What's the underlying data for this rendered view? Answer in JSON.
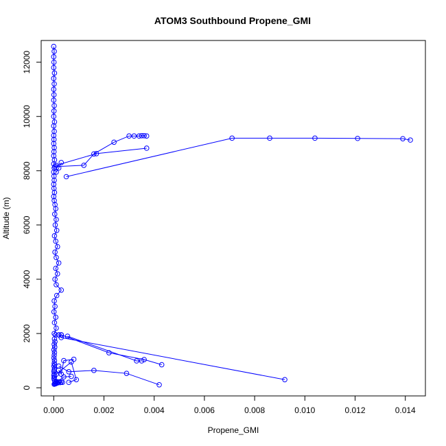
{
  "chart_data": {
    "type": "line",
    "title": "ATOM3 Southbound Propene_GMI",
    "xlabel": "Propene_GMI",
    "ylabel": "Altitude (m)",
    "xlim": [
      -0.0005,
      0.0148
    ],
    "ylim": [
      -300,
      12800
    ],
    "xticks": [
      0,
      0.002,
      0.004,
      0.006,
      0.008,
      0.01,
      0.012,
      0.014
    ],
    "xtick_labels": [
      "0.000",
      "0.002",
      "0.004",
      "0.006",
      "0.008",
      "0.010",
      "0.012",
      "0.014"
    ],
    "yticks": [
      0,
      2000,
      4000,
      6000,
      8000,
      10000,
      12000
    ],
    "ytick_labels": [
      "0",
      "2000",
      "4000",
      "6000",
      "8000",
      "10000",
      "12000"
    ],
    "grid": false,
    "legend": "none",
    "series": [
      {
        "color": "#0000ff",
        "marker": "open-circle",
        "x": [
          0,
          2e-05,
          0,
          1e-05,
          0,
          3e-05,
          0,
          2e-05,
          0,
          1e-05,
          0,
          2e-05,
          1e-05,
          0,
          3e-05,
          0,
          2e-05,
          0,
          1e-05,
          0,
          2e-05,
          1e-05,
          0,
          3e-05,
          0,
          2e-05,
          0,
          1e-05,
          2e-05,
          0,
          1e-05,
          3e-05,
          0,
          2e-05,
          5e-05,
          8e-05,
          4e-05,
          0.0001,
          6e-05,
          0.00012,
          3e-05,
          8e-05,
          0.00015,
          5e-05,
          0.0001,
          0.0002,
          8e-05,
          0.00015,
          5e-05,
          0.0001,
          0.0003,
          0.00012,
          2e-05,
          5e-05,
          1e-05,
          8e-05,
          3e-05,
          0.0001,
          2e-05,
          7e-05,
          3e-05,
          5e-05,
          2e-05,
          4e-05,
          1e-05,
          3e-05,
          2e-05,
          1e-05,
          3e-05,
          2e-05,
          4e-05,
          1e-05,
          3e-05,
          2e-05,
          1e-05,
          2e-05,
          1e-05,
          3e-05,
          1e-05,
          2e-05,
          4e-05,
          0.0001,
          0.0002,
          0.0003,
          0.00035,
          0.00025,
          0.00015,
          0.0001,
          5e-05,
          8e-05,
          3e-05,
          2e-05
        ],
        "y": [
          12580,
          12400,
          12200,
          12000,
          11800,
          11600,
          11400,
          11200,
          11000,
          10800,
          10600,
          10400,
          10200,
          10000,
          9800,
          9650,
          9450,
          9300,
          9150,
          9000,
          8850,
          8700,
          8550,
          8400,
          8250,
          8100,
          7950,
          7800,
          7650,
          7500,
          7350,
          7200,
          7050,
          6900,
          6750,
          6600,
          6400,
          6200,
          6000,
          5800,
          5600,
          5400,
          5200,
          5000,
          4800,
          4600,
          4400,
          4200,
          4000,
          3800,
          3600,
          3400,
          3200,
          3000,
          2800,
          2600,
          2400,
          2200,
          2000,
          1950,
          1800,
          1700,
          1600,
          1500,
          1400,
          1300,
          1200,
          1100,
          1000,
          900,
          850,
          800,
          700,
          650,
          600,
          500,
          450,
          400,
          350,
          300,
          250,
          230,
          220,
          210,
          200,
          190,
          180,
          170,
          160,
          150,
          140,
          130
        ]
      },
      {
        "color": "#0000ff",
        "marker": "open-circle",
        "x": [
          5e-05,
          0.0012,
          0.0016,
          0.0024,
          0.003,
          0.0032,
          0.0034,
          0.0035,
          0.0036,
          0.0037
        ],
        "y": [
          8150,
          8200,
          8620,
          9050,
          9280,
          9280,
          9280,
          9290,
          9290,
          9280
        ]
      },
      {
        "color": "#0000ff",
        "marker": "open-circle",
        "x": [
          0.0001,
          0.0017,
          0.0037
        ],
        "y": [
          8200,
          8630,
          8830
        ]
      },
      {
        "color": "#0000ff",
        "marker": "open-circle",
        "x": [
          0.0005,
          0.0071,
          0.0086,
          0.0104,
          0.0121,
          0.0139,
          0.0142
        ],
        "y": [
          7780,
          9200,
          9200,
          9200,
          9190,
          9180,
          9130
        ]
      },
      {
        "color": "#0000ff",
        "marker": "open-circle",
        "x": [
          0.0001,
          0.0002,
          0.0003
        ],
        "y": [
          7950,
          8100,
          8300
        ]
      },
      {
        "color": "#0000ff",
        "marker": "open-circle",
        "x": [
          0.0003,
          0.0092
        ],
        "y": [
          1850,
          300
        ]
      },
      {
        "color": "#0000ff",
        "marker": "open-circle",
        "x": [
          0.0003,
          0.0022,
          0.0036,
          0.0043
        ],
        "y": [
          1950,
          1290,
          1040,
          850
        ]
      },
      {
        "color": "#0000ff",
        "marker": "open-circle",
        "x": [
          0.00055,
          0.0033,
          0.0035
        ],
        "y": [
          1900,
          990,
          990
        ]
      },
      {
        "color": "#0000ff",
        "marker": "open-circle",
        "x": [
          0.0002,
          0.0006,
          0.0016,
          0.0029,
          0.0042
        ],
        "y": [
          800,
          590,
          640,
          530,
          110
        ]
      },
      {
        "color": "#0000ff",
        "marker": "open-circle",
        "x": [
          0.0001,
          0.0007,
          0.0009,
          0.0006
        ],
        "y": [
          500,
          950,
          300,
          200
        ]
      },
      {
        "color": "#0000ff",
        "marker": "open-circle",
        "x": [
          0.0002,
          0.0003,
          0.0004,
          0.0008
        ],
        "y": [
          650,
          500,
          1000,
          1050
        ]
      },
      {
        "color": "#0000ff",
        "marker": "open-circle",
        "x": [
          0.0002,
          0.0003,
          0.0002,
          0.0003
        ],
        "y": [
          1950,
          1950,
          1950,
          1950
        ]
      },
      {
        "color": "#0000ff",
        "marker": "open-circle",
        "x": [
          0.0001,
          0.0004,
          0.0007
        ],
        "y": [
          200,
          400,
          420
        ]
      }
    ]
  }
}
